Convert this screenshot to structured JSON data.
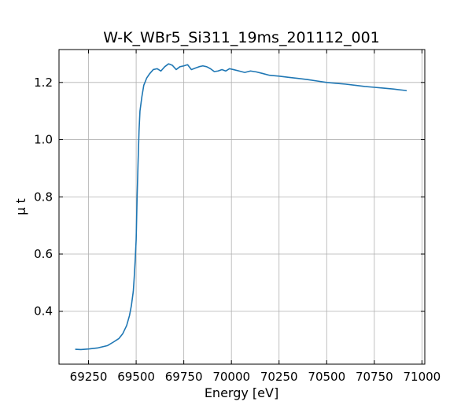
{
  "chart_data": {
    "type": "line",
    "title": "W-K_WBr5_Si311_19ms_201112_001",
    "xlabel": "Energy [eV]",
    "ylabel": "μ t",
    "xlim": [
      69095,
      71015
    ],
    "ylim": [
      0.215,
      1.315
    ],
    "xticks": [
      69250,
      69500,
      69750,
      70000,
      70250,
      70500,
      70750,
      71000
    ],
    "xtick_labels": [
      "69250",
      "69500",
      "69750",
      "70000",
      "70250",
      "70500",
      "70750",
      "71000"
    ],
    "yticks": [
      0.4,
      0.6,
      0.8,
      1.0,
      1.2
    ],
    "ytick_labels": [
      "0.4",
      "0.6",
      "0.8",
      "1.0",
      "1.2"
    ],
    "grid": true,
    "line_color": "#1f77b4",
    "series": [
      {
        "x": [
          69180,
          69210,
          69250,
          69300,
          69350,
          69380,
          69410,
          69430,
          69450,
          69465,
          69475,
          69485,
          69490,
          69495,
          69500,
          69505,
          69510,
          69515,
          69520,
          69530,
          69540,
          69555,
          69570,
          69590,
          69610,
          69630,
          69650,
          69670,
          69690,
          69710,
          69730,
          69750,
          69770,
          69790,
          69810,
          69830,
          69850,
          69870,
          69890,
          69910,
          69930,
          69950,
          69970,
          69990,
          70010,
          70040,
          70070,
          70100,
          70130,
          70160,
          70200,
          70250,
          70300,
          70350,
          70400,
          70450,
          70500,
          70550,
          70600,
          70650,
          70700,
          70750,
          70800,
          70850,
          70900,
          70920
        ],
        "y": [
          0.267,
          0.266,
          0.268,
          0.272,
          0.28,
          0.292,
          0.305,
          0.322,
          0.35,
          0.385,
          0.42,
          0.47,
          0.52,
          0.58,
          0.65,
          0.8,
          0.92,
          1.03,
          1.1,
          1.15,
          1.19,
          1.215,
          1.23,
          1.245,
          1.248,
          1.24,
          1.255,
          1.265,
          1.26,
          1.245,
          1.255,
          1.258,
          1.262,
          1.245,
          1.25,
          1.255,
          1.258,
          1.255,
          1.248,
          1.238,
          1.24,
          1.245,
          1.24,
          1.248,
          1.245,
          1.24,
          1.235,
          1.24,
          1.237,
          1.232,
          1.225,
          1.222,
          1.218,
          1.214,
          1.21,
          1.205,
          1.2,
          1.197,
          1.194,
          1.19,
          1.186,
          1.183,
          1.18,
          1.177,
          1.173,
          1.171
        ]
      }
    ]
  }
}
